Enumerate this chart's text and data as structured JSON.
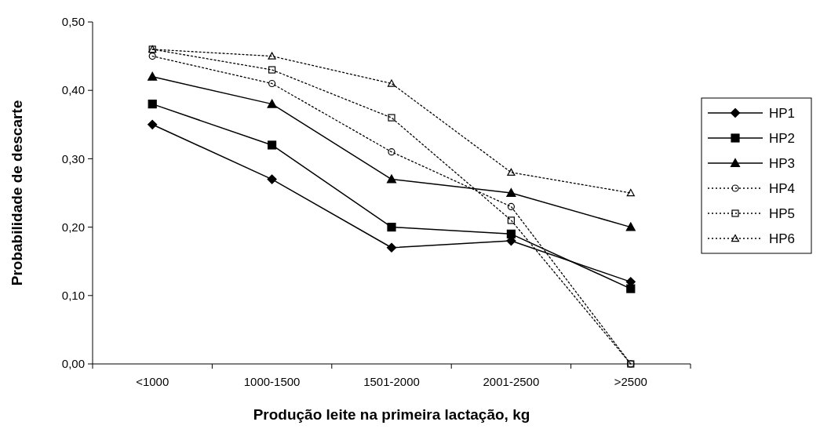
{
  "chart_data": {
    "type": "line",
    "xlabel": "Produção leite na primeira lactação, kg",
    "ylabel": "Probabilidade de descarte",
    "categories": [
      "<1000",
      "1000-1500",
      "1501-2000",
      "2001-2500",
      ">2500"
    ],
    "ylim": [
      0,
      0.5
    ],
    "yticks": [
      {
        "value": 0,
        "label": "0,00"
      },
      {
        "value": 0.1,
        "label": "0,10"
      },
      {
        "value": 0.2,
        "label": "0,20"
      },
      {
        "value": 0.3,
        "label": "0,30"
      },
      {
        "value": 0.4,
        "label": "0,40"
      },
      {
        "value": 0.5,
        "label": "0,50"
      }
    ],
    "grid": false,
    "legend": "right",
    "series": [
      {
        "name": "HP1",
        "color": "#000000",
        "marker": "diamond",
        "line_style": "solid",
        "values": [
          0.35,
          0.27,
          0.17,
          0.18,
          0.12
        ]
      },
      {
        "name": "HP2",
        "color": "#000000",
        "marker": "square",
        "line_style": "solid",
        "values": [
          0.38,
          0.32,
          0.2,
          0.19,
          0.11
        ]
      },
      {
        "name": "HP3",
        "color": "#000000",
        "marker": "triangle",
        "line_style": "solid",
        "values": [
          0.42,
          0.38,
          0.27,
          0.25,
          0.2
        ]
      },
      {
        "name": "HP4",
        "color": "#000000",
        "marker": "circle",
        "line_style": "dotted",
        "values": [
          0.45,
          0.41,
          0.31,
          0.23,
          0.0
        ]
      },
      {
        "name": "HP5",
        "color": "#000000",
        "marker": "square",
        "line_style": "dotted",
        "values": [
          0.46,
          0.43,
          0.36,
          0.21,
          0.0
        ]
      },
      {
        "name": "HP6",
        "color": "#000000",
        "marker": "triangle",
        "line_style": "dotted",
        "values": [
          0.46,
          0.45,
          0.41,
          0.28,
          0.25
        ]
      }
    ]
  }
}
